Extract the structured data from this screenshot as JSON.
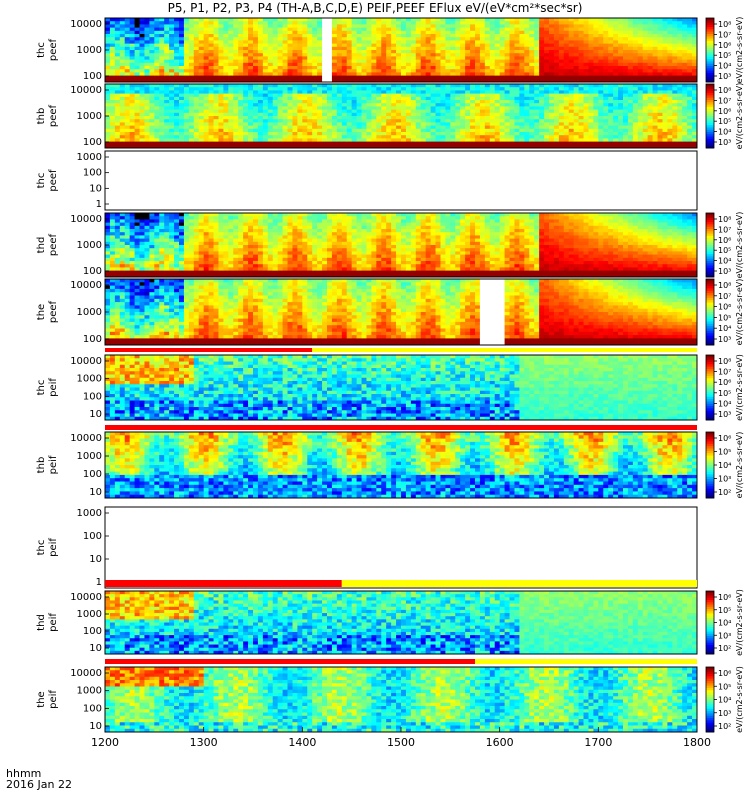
{
  "title": "P5, P1, P2, P3, P4 (TH-A,B,C,D,E) PEIF,PEEF EFlux eV/(eV*cm²*sec*sr)",
  "x_axis": {
    "ticks": [
      "1200",
      "1300",
      "1400",
      "1500",
      "1600",
      "1700",
      "1800"
    ],
    "range": [
      1200,
      1800
    ]
  },
  "bottom_label": {
    "line1": "hhmm",
    "line2": "2016 Jan 22"
  },
  "chart_data": [
    {
      "type": "heatmap",
      "probe": "thc",
      "species": "peef",
      "yticks": [
        "10000",
        "1000",
        "100"
      ],
      "colorbar_label": "eV/(cm2-s-sr-eV)",
      "cbar_ticks": [
        "10⁸",
        "10⁷",
        "10⁶",
        "10⁵",
        "10⁴",
        "10³"
      ],
      "regime": "electron_a",
      "gap": [
        1418,
        1432
      ],
      "flag": null,
      "has_data": true
    },
    {
      "type": "heatmap",
      "probe": "thb",
      "species": "peef",
      "yticks": [
        "10000",
        "1000",
        "100"
      ],
      "colorbar_label": "eV/(cm2-s-sr-eV)",
      "cbar_ticks": [
        "10⁸",
        "10⁷",
        "10⁶",
        "10⁵",
        "10⁴",
        "10³"
      ],
      "regime": "electron_b",
      "gap": null,
      "flag": null,
      "has_data": true
    },
    {
      "type": "heatmap",
      "probe": "thc",
      "species": "peef",
      "yticks": [
        "1000",
        "100",
        "10",
        "1"
      ],
      "colorbar_label": "",
      "cbar_ticks": [],
      "regime": "empty",
      "gap": null,
      "flag": null,
      "has_data": false
    },
    {
      "type": "heatmap",
      "probe": "thd",
      "species": "peef",
      "yticks": [
        "10000",
        "1000",
        "100"
      ],
      "colorbar_label": "eV/(cm2-s-sr-eV)",
      "cbar_ticks": [
        "10⁸",
        "10⁷",
        "10⁶",
        "10⁵",
        "10⁴",
        "10³"
      ],
      "regime": "electron_a",
      "gap": null,
      "flag": null,
      "has_data": true
    },
    {
      "type": "heatmap",
      "probe": "the",
      "species": "peef",
      "yticks": [
        "10000",
        "1000",
        "100"
      ],
      "colorbar_label": "eV/(cm2-s-sr-eV)",
      "cbar_ticks": [
        "10⁸",
        "10⁷",
        "10⁶",
        "10⁵",
        "10⁴",
        "10³"
      ],
      "regime": "electron_a",
      "gap": [
        1578,
        1606
      ],
      "flag": {
        "red_end": 1410
      },
      "has_data": true
    },
    {
      "type": "heatmap",
      "probe": "thc",
      "species": "peif",
      "yticks": [
        "10000",
        "1000",
        "100",
        "10"
      ],
      "colorbar_label": "eV/(cm2-s-sr-eV)",
      "cbar_ticks": [
        "10⁸",
        "10⁷",
        "10⁶",
        "10⁵",
        "10⁴",
        "10³"
      ],
      "regime": "ion_a",
      "gap": null,
      "flag": {
        "red_end": 1800
      },
      "has_data": true
    },
    {
      "type": "heatmap",
      "probe": "thb",
      "species": "peif",
      "yticks": [
        "10000",
        "1000",
        "100",
        "10"
      ],
      "colorbar_label": "eV/(cm2-s-sr-eV)",
      "cbar_ticks": [
        "10⁶",
        "10⁵",
        "10⁴",
        "10³",
        "10²"
      ],
      "regime": "ion_b",
      "gap": null,
      "flag": null,
      "has_data": true
    },
    {
      "type": "heatmap",
      "probe": "thc",
      "species": "peif",
      "yticks": [
        "1000",
        "100",
        "10",
        "1"
      ],
      "colorbar_label": "",
      "cbar_ticks": [],
      "regime": "empty",
      "gap": null,
      "flag": {
        "red_end": 1440
      },
      "has_data": false
    },
    {
      "type": "heatmap",
      "probe": "thd",
      "species": "peif",
      "yticks": [
        "10000",
        "1000",
        "100",
        "10"
      ],
      "colorbar_label": "eV/(cm2-s-sr-eV)",
      "cbar_ticks": [
        "10⁶",
        "10⁵",
        "10⁴",
        "10³",
        "10²"
      ],
      "regime": "ion_a",
      "gap": null,
      "flag": {
        "red_end": 1575
      },
      "has_data": true
    },
    {
      "type": "heatmap",
      "probe": "the",
      "species": "peif",
      "yticks": [
        "10000",
        "1000",
        "100",
        "10"
      ],
      "colorbar_label": "eV/(cm2-s-sr-eV)",
      "cbar_ticks": [
        "10⁶",
        "10⁵",
        "10⁴",
        "10³",
        "10²"
      ],
      "regime": "ion_c",
      "gap": null,
      "flag": null,
      "has_data": true
    }
  ]
}
